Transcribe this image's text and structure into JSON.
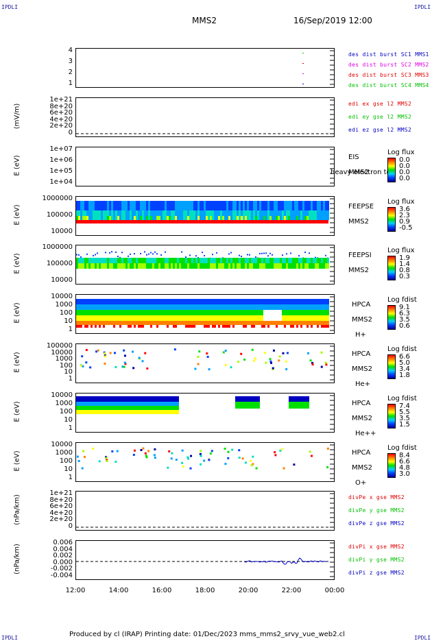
{
  "corners": {
    "tl": "IPDLI",
    "tr": "IPDLI",
    "bl": "IPDLI",
    "br": "IPDLI"
  },
  "header": {
    "spacecraft": "MMS2",
    "datetime": "16/Sep/2019 12:00"
  },
  "footer": {
    "text": "Produced by cl (IRAP)   Printing date: 01/Dec/2023   mms_mms2_srvy_vue_web2.cl"
  },
  "colors": {
    "red": "#e00000",
    "green": "#00c000",
    "blue": "#0000c0",
    "magenta": "#e000e0"
  },
  "chart_data": [
    {
      "type": "scatter",
      "panel": "burst",
      "yticks": [
        "4",
        "3",
        "2",
        "1"
      ],
      "legend": [
        {
          "label": "des dist burst SC1 MMS1",
          "color": "#0000c0"
        },
        {
          "label": "des dist burst SC2 MMS2",
          "color": "#e000e0"
        },
        {
          "label": "des dist burst SC3 MMS3",
          "color": "#e00000"
        },
        {
          "label": "des dist burst SC4 MMS4",
          "color": "#00c000"
        }
      ]
    },
    {
      "type": "line",
      "panel": "edi",
      "ylabel": "(mV/m)",
      "yticks": [
        "1e+21",
        "8e+20",
        "6e+20",
        "4e+20",
        "2e+20",
        "0"
      ],
      "legend": [
        {
          "label": "edi ex gse l2 MMS2",
          "color": "#e00000"
        },
        {
          "label": "edi ey gse l2 MMS2",
          "color": "#00c000"
        },
        {
          "label": "edi ez gse l2 MMS2",
          "color": "#0000c0"
        }
      ]
    },
    {
      "type": "heatmap",
      "panel": "eis",
      "ylabel": "E (eV)",
      "yticks": [
        "1e+07",
        "1e+06",
        "1e+05",
        "1e+04"
      ],
      "labels": [
        "EIS",
        "MMS2"
      ],
      "overlay": "heavy electron to",
      "cbar_title": "Log flux",
      "cbar_ticks": [
        "0.0",
        "0.0",
        "0.0",
        "0.0"
      ]
    },
    {
      "type": "heatmap",
      "panel": "feepse",
      "ylabel": "E (eV)",
      "yticks": [
        "1000000",
        "100000",
        "10000"
      ],
      "labels": [
        "FEEPSE",
        "MMS2"
      ],
      "cbar_title": "Log flux",
      "cbar_ticks": [
        "3.6",
        "2.3",
        "0.9",
        "-0.5"
      ]
    },
    {
      "type": "heatmap",
      "panel": "feepsi",
      "ylabel": "E (eV)",
      "yticks": [
        "1000000",
        "100000",
        "10000"
      ],
      "labels": [
        "FEEPSI",
        "MMS2"
      ],
      "cbar_title": "Log flux",
      "cbar_ticks": [
        "1.9",
        "1.4",
        "0.8",
        "0.3"
      ]
    },
    {
      "type": "heatmap",
      "panel": "hpca_h",
      "ylabel": "E (eV)",
      "yticks": [
        "10000",
        "1000",
        "100",
        "10",
        "1"
      ],
      "labels": [
        "HPCA",
        "MMS2",
        "H+"
      ],
      "cbar_title": "Log fdist",
      "cbar_ticks": [
        "9.1",
        "6.3",
        "3.5",
        "0.6"
      ]
    },
    {
      "type": "heatmap",
      "panel": "hpca_he",
      "ylabel": "E (eV)",
      "yticks": [
        "100000",
        "10000",
        "1000",
        "100",
        "10",
        "1"
      ],
      "labels": [
        "HPCA",
        "MMS2",
        "He+"
      ],
      "cbar_title": "Log fdist",
      "cbar_ticks": [
        "6.6",
        "5.0",
        "3.4",
        "1.8"
      ]
    },
    {
      "type": "heatmap",
      "panel": "hpca_hepp",
      "ylabel": "E (eV)",
      "yticks": [
        "10000",
        "1000",
        "100",
        "10",
        "1"
      ],
      "labels": [
        "HPCA",
        "MMS2",
        "He++"
      ],
      "cbar_title": "Log fdist",
      "cbar_ticks": [
        "7.4",
        "5.5",
        "3.5",
        "1.5"
      ]
    },
    {
      "type": "heatmap",
      "panel": "hpca_o",
      "ylabel": "E (eV)",
      "yticks": [
        "10000",
        "1000",
        "100",
        "10",
        "1"
      ],
      "labels": [
        "HPCA",
        "MMS2",
        "O+"
      ],
      "cbar_title": "Log fdist",
      "cbar_ticks": [
        "8.4",
        "6.6",
        "4.8",
        "3.0"
      ]
    },
    {
      "type": "line",
      "panel": "divpe",
      "ylabel": "(nPa/km)",
      "yticks": [
        "1e+21",
        "8e+20",
        "6e+20",
        "4e+20",
        "2e+20",
        "0"
      ],
      "legend": [
        {
          "label": "divPe x gse MMS2",
          "color": "#e00000"
        },
        {
          "label": "divPe y gse MMS2",
          "color": "#00c000"
        },
        {
          "label": "divPe z gse MMS2",
          "color": "#0000c0"
        }
      ]
    },
    {
      "type": "line",
      "panel": "divpi",
      "ylabel": "(nPa/km)",
      "yticks": [
        "0.006",
        "0.004",
        "0.002",
        "0.000",
        "-0.002",
        "-0.004"
      ],
      "legend": [
        {
          "label": "divPi x gse MMS2",
          "color": "#e00000"
        },
        {
          "label": "divPi y gse MMS2",
          "color": "#00c000"
        },
        {
          "label": "divPi z gse MMS2",
          "color": "#0000c0"
        }
      ]
    }
  ],
  "xaxis": {
    "ticks": [
      "12:00",
      "14:00",
      "16:00",
      "18:00",
      "20:00",
      "22:00",
      "00:00"
    ]
  }
}
